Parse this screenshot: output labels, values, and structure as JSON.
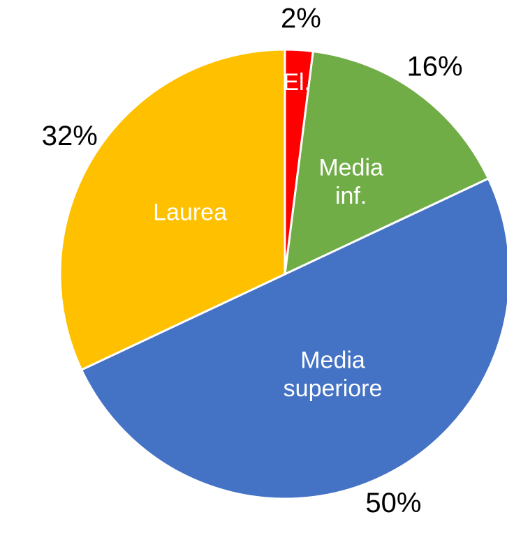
{
  "chart_data": {
    "type": "pie",
    "categories": [
      "El.",
      "Media inf.",
      "Media superiore",
      "Laurea"
    ],
    "values": [
      2,
      16,
      50,
      32
    ],
    "value_labels": [
      "2%",
      "16%",
      "50%",
      "32%"
    ],
    "colors": [
      "#ff0000",
      "#70ad47",
      "#4472c4",
      "#ffc000"
    ]
  }
}
